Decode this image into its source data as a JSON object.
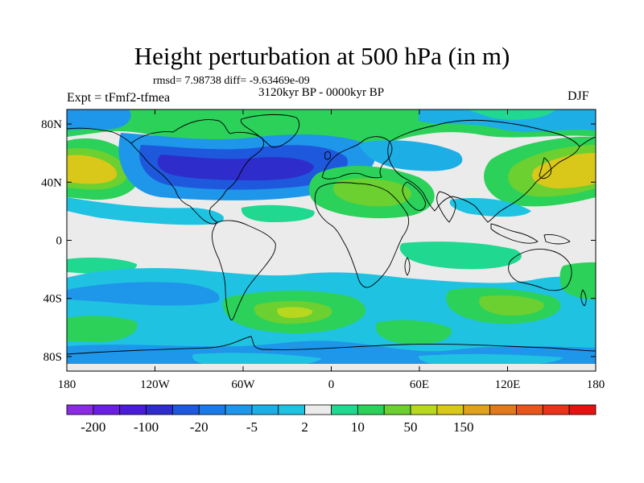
{
  "header": {
    "title": "Height perturbation at 500 hPa (in m)",
    "stats": "rmsd= 7.98738 diff= -9.63469e-09",
    "experiment": "Expt = tFmf2-tfmea",
    "period": "3120kyr BP - 0000kyr BP",
    "season": "DJF"
  },
  "map": {
    "projection": "cylindrical equidistant",
    "lon_ticks": [
      {
        "lon": -180,
        "label": "180"
      },
      {
        "lon": -120,
        "label": "120W"
      },
      {
        "lon": -60,
        "label": "60W"
      },
      {
        "lon": 0,
        "label": "0"
      },
      {
        "lon": 60,
        "label": "60E"
      },
      {
        "lon": 120,
        "label": "120E"
      },
      {
        "lon": 180,
        "label": "180"
      }
    ],
    "lat_ticks": [
      {
        "lat": 80,
        "label": "80N"
      },
      {
        "lat": 40,
        "label": "40N"
      },
      {
        "lat": 0,
        "label": "0"
      },
      {
        "lat": -40,
        "label": "40S"
      },
      {
        "lat": -80,
        "label": "80S"
      }
    ],
    "lat_range": [
      -90,
      90
    ],
    "lon_range": [
      -180,
      180
    ]
  },
  "colorbar": {
    "colors": [
      "#8a2be2",
      "#6a1ee0",
      "#4b1cd8",
      "#2f2ccc",
      "#1e58dc",
      "#1a7be8",
      "#1e96ea",
      "#1eaee6",
      "#20c2e2",
      "#ebebeb",
      "#20d890",
      "#2cd15a",
      "#6bd030",
      "#b8d820",
      "#d9c81a",
      "#e0a11c",
      "#e07a1c",
      "#e6561c",
      "#e8321a",
      "#e61212"
    ],
    "labels": [
      "-200",
      "-100",
      "-20",
      "-5",
      "2",
      "10",
      "50",
      "150"
    ],
    "label_boundaries": [
      1,
      3,
      5,
      7,
      9,
      11,
      13,
      15
    ]
  }
}
